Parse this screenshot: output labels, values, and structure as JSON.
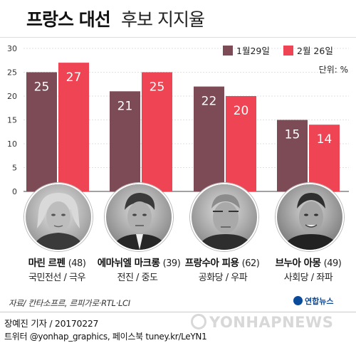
{
  "header": {
    "title_bold": "프랑스 대선",
    "title_light": "후보 지지율"
  },
  "chart_data": {
    "type": "bar",
    "categories": [
      "마린 르펜",
      "에마뉘엘 마크롱",
      "프랑수아 피용",
      "브누아 아몽"
    ],
    "series": [
      {
        "name": "1월29일",
        "color": "#7d4b55",
        "values": [
          25,
          21,
          22,
          15
        ]
      },
      {
        "name": "2월 26일",
        "color": "#ee4453",
        "values": [
          27,
          25,
          20,
          14
        ]
      }
    ],
    "ylim": [
      0,
      30
    ],
    "yticks": [
      0,
      5,
      10,
      15,
      20,
      25,
      30
    ],
    "unit_label": "단위: %",
    "legend_position": "top-right",
    "grid": true
  },
  "candidates": [
    {
      "name": "마린 르펜",
      "age": "(48)",
      "party": "국민전선 / 극우"
    },
    {
      "name": "에마뉘엘 마크롱",
      "age": "(39)",
      "party": "전진 / 중도"
    },
    {
      "name": "프랑수아 피용",
      "age": "(62)",
      "party": "공화당 / 우파"
    },
    {
      "name": "브누아 아몽",
      "age": "(49)",
      "party": "사회당 / 좌파"
    }
  ],
  "footer": {
    "source": "자료/ 칸타소프르, 르피가로·RTL·LCI",
    "byline": "장예진 기자 / 20170227",
    "social": "트위터 @yonhap_graphics, 페이스북 tuney.kr/LeYN1",
    "logo_text": "연합뉴스",
    "watermark": "YONHAPNEWS"
  }
}
